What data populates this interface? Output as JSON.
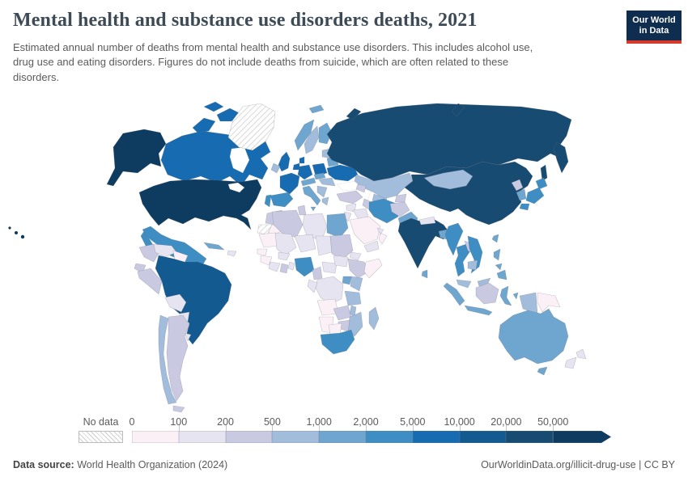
{
  "header": {
    "title": "Mental health and substance use disorders deaths, 2021",
    "subtitle": "Estimated annual number of deaths from mental health and substance use disorders. This includes alcohol use, drug use and eating disorders. Figures do not include deaths from suicide, which are often related to these disorders.",
    "logo": {
      "line1": "Our World",
      "line2": "in Data",
      "bg": "#0f2e4f",
      "accent": "#d73a2a"
    }
  },
  "chart_data": {
    "type": "choropleth-map",
    "title": "Mental health and substance use disorders deaths",
    "year": "2021",
    "unit": "deaths per year",
    "legend": {
      "no_data_label": "No data",
      "ticks": [
        "0",
        "100",
        "200",
        "500",
        "1,000",
        "2,000",
        "5,000",
        "10,000",
        "20,000",
        "50,000"
      ],
      "bin_ranges": [
        "0-100",
        "100-200",
        "200-500",
        "500-1,000",
        "1,000-2,000",
        "2,000-5,000",
        "5,000-10,000",
        "10,000-20,000",
        "20,000-50,000",
        "50,000+"
      ],
      "bin_colors": [
        "#fcf0f7",
        "#e7e4f1",
        "#c9c9e2",
        "#a2bcdc",
        "#6ea6cf",
        "#3e8ec3",
        "#176cb1",
        "#125a90",
        "#174b72",
        "#0e3c60"
      ]
    },
    "regions": {
      "usa": {
        "l": "United States",
        "b": 9
      },
      "can": {
        "l": "Canada",
        "b": 6
      },
      "grl": {
        "l": "Greenland",
        "b": -1
      },
      "mex": {
        "l": "Mexico",
        "b": 5
      },
      "gtm": {
        "l": "Guatemala",
        "b": 5
      },
      "hnd": {
        "l": "Honduras & Nicaragua",
        "b": 0
      },
      "cri": {
        "l": "Costa Rica & Panama",
        "b": 1
      },
      "cub": {
        "l": "Cuba",
        "b": 4
      },
      "hti": {
        "l": "Hispaniola",
        "b": 1
      },
      "col": {
        "l": "Colombia",
        "b": 2
      },
      "ven": {
        "l": "Venezuela",
        "b": 1
      },
      "guy": {
        "l": "Guyana & Suriname",
        "b": 0
      },
      "ecu": {
        "l": "Ecuador",
        "b": 2
      },
      "per": {
        "l": "Peru",
        "b": 2
      },
      "bra": {
        "l": "Brazil",
        "b": 7
      },
      "bol": {
        "l": "Bolivia",
        "b": 1
      },
      "pry": {
        "l": "Paraguay",
        "b": 1
      },
      "ury": {
        "l": "Uruguay",
        "b": 1
      },
      "chl": {
        "l": "Chile",
        "b": 3
      },
      "arg": {
        "l": "Argentina",
        "b": 2
      },
      "isl": {
        "l": "Iceland",
        "b": 0
      },
      "gbr": {
        "l": "United Kingdom",
        "b": 6
      },
      "irl": {
        "l": "Ireland",
        "b": 3
      },
      "nor": {
        "l": "Norway",
        "b": 4
      },
      "swe": {
        "l": "Sweden",
        "b": 3
      },
      "fin": {
        "l": "Finland",
        "b": 4
      },
      "dnk": {
        "l": "Denmark",
        "b": 6
      },
      "blt": {
        "l": "Baltic states",
        "b": 3
      },
      "fra": {
        "l": "France",
        "b": 6
      },
      "esp": {
        "l": "Spain",
        "b": 5
      },
      "prt": {
        "l": "Portugal",
        "b": 5
      },
      "deu": {
        "l": "Germany",
        "b": 6
      },
      "pol": {
        "l": "Poland",
        "b": 6
      },
      "ben": {
        "l": "Belgium & Netherlands",
        "b": 6
      },
      "che": {
        "l": "Switzerland & Austria",
        "b": 4
      },
      "cze": {
        "l": "Czechia & Slovakia",
        "b": 4
      },
      "ita": {
        "l": "Italy",
        "b": 4
      },
      "hun": {
        "l": "Hungary & Romania",
        "b": 3
      },
      "bal": {
        "l": "Balkans",
        "b": 3
      },
      "grc": {
        "l": "Greece",
        "b": 3
      },
      "blr": {
        "l": "Belarus",
        "b": 4
      },
      "ukr": {
        "l": "Ukraine",
        "b": 6
      },
      "rus": {
        "l": "Russia",
        "b": 8
      },
      "kaz": {
        "l": "Kazakhstan",
        "b": 3
      },
      "uzb": {
        "l": "Uzbekistan",
        "b": 3
      },
      "tkm": {
        "l": "Turkmenistan",
        "b": 2
      },
      "kgz": {
        "l": "Kyrgyzstan & Tajikistan",
        "b": 2
      },
      "cau": {
        "l": "Caucasus",
        "b": 2
      },
      "tur": {
        "l": "Turkey",
        "b": 2
      },
      "syr": {
        "l": "Syria",
        "b": 1
      },
      "irq": {
        "l": "Iraq",
        "b": 1
      },
      "jor": {
        "l": "Jordan & Israel",
        "b": 1
      },
      "sau": {
        "l": "Saudi Arabia",
        "b": 0
      },
      "yem": {
        "l": "Yemen",
        "b": 1
      },
      "omn": {
        "l": "Oman",
        "b": 0
      },
      "are": {
        "l": "United Arab Emirates",
        "b": 1
      },
      "irn": {
        "l": "Iran",
        "b": 5
      },
      "afg": {
        "l": "Afghanistan",
        "b": 2
      },
      "pak": {
        "l": "Pakistan",
        "b": 4
      },
      "chn": {
        "l": "China",
        "b": 8
      },
      "mng": {
        "l": "Mongolia",
        "b": 3
      },
      "prk": {
        "l": "North Korea",
        "b": 2
      },
      "kor": {
        "l": "South Korea",
        "b": 4
      },
      "jpn": {
        "l": "Japan",
        "b": 5
      },
      "twn": {
        "l": "Taiwan",
        "b": 4
      },
      "ind": {
        "l": "India",
        "b": 8
      },
      "npl": {
        "l": "Nepal",
        "b": 1
      },
      "bgd": {
        "l": "Bangladesh",
        "b": 4
      },
      "lka": {
        "l": "Sri Lanka",
        "b": 4
      },
      "mmr": {
        "l": "Myanmar",
        "b": 5
      },
      "tha": {
        "l": "Thailand",
        "b": 5
      },
      "lao": {
        "l": "Laos",
        "b": 2
      },
      "vnm": {
        "l": "Vietnam",
        "b": 5
      },
      "khm": {
        "l": "Cambodia",
        "b": 3
      },
      "mys": {
        "l": "Malaysia",
        "b": 3
      },
      "idn": {
        "l": "Indonesia",
        "b": 4
      },
      "brn": {
        "l": "Kalimantan (Indonesia)",
        "b": 2
      },
      "wpg": {
        "l": "Western New Guinea",
        "b": 3
      },
      "png": {
        "l": "Papua New Guinea",
        "b": 0
      },
      "phl": {
        "l": "Philippines",
        "b": 4
      },
      "aus": {
        "l": "Australia",
        "b": 4
      },
      "nzl": {
        "l": "New Zealand",
        "b": 1
      },
      "mar": {
        "l": "Morocco",
        "b": 2
      },
      "esh": {
        "l": "Western Sahara",
        "b": -1
      },
      "dza": {
        "l": "Algeria",
        "b": 2
      },
      "tun": {
        "l": "Tunisia",
        "b": 2
      },
      "lby": {
        "l": "Libya",
        "b": 1
      },
      "egy": {
        "l": "Egypt",
        "b": 4
      },
      "mrt": {
        "l": "Mauritania",
        "b": 0
      },
      "mli": {
        "l": "Mali",
        "b": 1
      },
      "ner": {
        "l": "Niger",
        "b": 1
      },
      "tcd": {
        "l": "Chad",
        "b": 1
      },
      "sdn": {
        "l": "Sudan",
        "b": 2
      },
      "eri": {
        "l": "Eritrea & Djibouti",
        "b": 1
      },
      "sen": {
        "l": "Senegal",
        "b": 0
      },
      "gin": {
        "l": "Guinea",
        "b": 0
      },
      "civ": {
        "l": "Cote d'Ivoire & Liberia",
        "b": 1
      },
      "gha": {
        "l": "Ghana",
        "b": 2
      },
      "bfa": {
        "l": "Burkina Faso",
        "b": 1
      },
      "tgo": {
        "l": "Togo & Benin",
        "b": 1
      },
      "nga": {
        "l": "Nigeria",
        "b": 5
      },
      "cmr": {
        "l": "Cameroon",
        "b": 2
      },
      "caf": {
        "l": "Central African Republic",
        "b": 1
      },
      "ssd": {
        "l": "South Sudan",
        "b": 1
      },
      "eth": {
        "l": "Ethiopia",
        "b": 2
      },
      "som": {
        "l": "Somalia",
        "b": 0
      },
      "uga": {
        "l": "Uganda",
        "b": 4
      },
      "ken": {
        "l": "Kenya",
        "b": 3
      },
      "cod": {
        "l": "DR Congo",
        "b": 1
      },
      "gab": {
        "l": "Gabon & Congo",
        "b": 1
      },
      "tza": {
        "l": "Tanzania",
        "b": 3
      },
      "ago": {
        "l": "Angola",
        "b": 0
      },
      "zmb": {
        "l": "Zambia",
        "b": 2
      },
      "mwi": {
        "l": "Malawi",
        "b": 3
      },
      "moz": {
        "l": "Mozambique",
        "b": 3
      },
      "zwe": {
        "l": "Zimbabwe",
        "b": 2
      },
      "nam": {
        "l": "Namibia",
        "b": 0
      },
      "bwa": {
        "l": "Botswana",
        "b": 0
      },
      "zaf": {
        "l": "South Africa",
        "b": 5
      },
      "mdg": {
        "l": "Madagascar",
        "b": 3
      }
    }
  },
  "footer": {
    "source_label": "Data source:",
    "source_value": "World Health Organization (2024)",
    "link": "OurWorldinData.org/illicit-drug-use",
    "separator": "|",
    "license": "CC BY"
  }
}
